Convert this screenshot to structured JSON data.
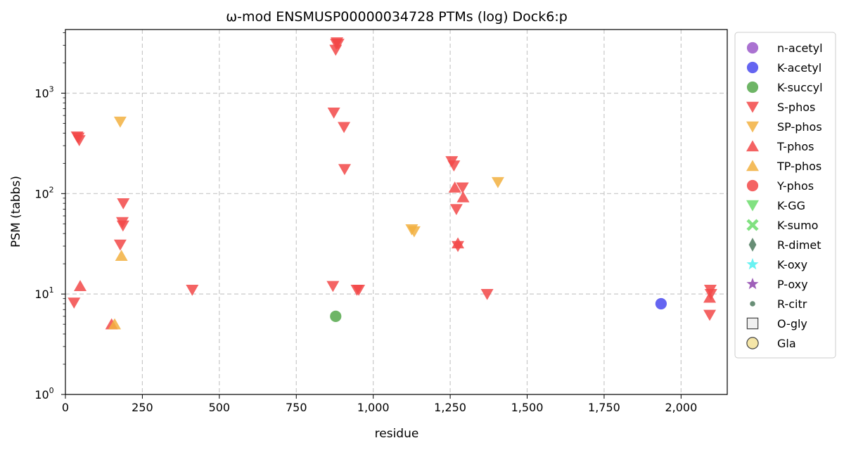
{
  "chart_data": {
    "type": "scatter",
    "title": "ω-mod ENSMUSP00000034728 PTMs (log) Dock6:p",
    "xlabel": "residue",
    "ylabel": "PSM (tabbs)",
    "xlim": [
      0,
      2150
    ],
    "ylim": [
      1,
      4300
    ],
    "y_scale": "log",
    "grid": true,
    "legend_position": "outside-right",
    "x_ticks": [
      "0",
      "250",
      "500",
      "750",
      "1,000",
      "1,250",
      "1,500",
      "1,750",
      "2,000"
    ],
    "x_tick_values": [
      0,
      250,
      500,
      750,
      1000,
      1250,
      1500,
      1750,
      2000
    ],
    "y_ticks": [
      {
        "value": 1,
        "base": "10",
        "exp": "0"
      },
      {
        "value": 10,
        "base": "10",
        "exp": "1"
      },
      {
        "value": 100,
        "base": "10",
        "exp": "2"
      },
      {
        "value": 1000,
        "base": "10",
        "exp": "3"
      }
    ],
    "legend": [
      {
        "name": "n-acetyl",
        "marker": "circle",
        "color": "#9b59c9"
      },
      {
        "name": "K-acetyl",
        "marker": "circle",
        "color": "#4a4aee"
      },
      {
        "name": "K-succyl",
        "marker": "circle",
        "color": "#55a84b"
      },
      {
        "name": "S-phos",
        "marker": "triangle-down",
        "color": "#f24848"
      },
      {
        "name": "SP-phos",
        "marker": "triangle-down",
        "color": "#f2b040"
      },
      {
        "name": "T-phos",
        "marker": "triangle-up",
        "color": "#f24848"
      },
      {
        "name": "TP-phos",
        "marker": "triangle-up",
        "color": "#f2b040"
      },
      {
        "name": "Y-phos",
        "marker": "circle",
        "color": "#f24848"
      },
      {
        "name": "K-GG",
        "marker": "triangle-down",
        "color": "#6bdc6b"
      },
      {
        "name": "K-sumo",
        "marker": "x",
        "color": "#6bdc6b"
      },
      {
        "name": "R-dimet",
        "marker": "diamond",
        "color": "#4e7a5e"
      },
      {
        "name": "K-oxy",
        "marker": "star",
        "color": "#4ef0f0"
      },
      {
        "name": "P-oxy",
        "marker": "star",
        "color": "#8e44ad"
      },
      {
        "name": "R-citr",
        "marker": "small-circle",
        "color": "#4e7a5e"
      },
      {
        "name": "O-gly",
        "marker": "square-open",
        "color": "#f0f0f0"
      },
      {
        "name": "Gla",
        "marker": "circle-open",
        "color": "#f5e6a8"
      }
    ],
    "series": [
      {
        "name": "S-phos",
        "points": [
          [
            28,
            8.2
          ],
          [
            38,
            370
          ],
          [
            42,
            360
          ],
          [
            45,
            340
          ],
          [
            178,
            31
          ],
          [
            185,
            52
          ],
          [
            187,
            48
          ],
          [
            188,
            80
          ],
          [
            412,
            11
          ],
          [
            869,
            12
          ],
          [
            872,
            640
          ],
          [
            878,
            2700
          ],
          [
            880,
            3100
          ],
          [
            882,
            3200
          ],
          [
            886,
            3100
          ],
          [
            905,
            460
          ],
          [
            907,
            175
          ],
          [
            947,
            11
          ],
          [
            953,
            11
          ],
          [
            1255,
            210
          ],
          [
            1262,
            190
          ],
          [
            1270,
            70
          ],
          [
            1275,
            30
          ],
          [
            1290,
            115
          ],
          [
            1370,
            10
          ],
          [
            2093,
            6.2
          ],
          [
            2095,
            11
          ],
          [
            2097,
            10
          ]
        ]
      },
      {
        "name": "SP-phos",
        "points": [
          [
            178,
            520
          ],
          [
            1125,
            44
          ],
          [
            1133,
            42
          ],
          [
            1405,
            130
          ]
        ]
      },
      {
        "name": "T-phos",
        "points": [
          [
            48,
            12
          ],
          [
            150,
            5
          ],
          [
            1265,
            115
          ],
          [
            1275,
            32
          ],
          [
            1292,
            92
          ],
          [
            2093,
            9.2
          ]
        ]
      },
      {
        "name": "TP-phos",
        "points": [
          [
            160,
            5
          ],
          [
            182,
            24
          ]
        ]
      },
      {
        "name": "K-succyl",
        "points": [
          [
            878,
            6
          ]
        ]
      },
      {
        "name": "K-acetyl",
        "points": [
          [
            1935,
            8
          ]
        ]
      }
    ]
  }
}
